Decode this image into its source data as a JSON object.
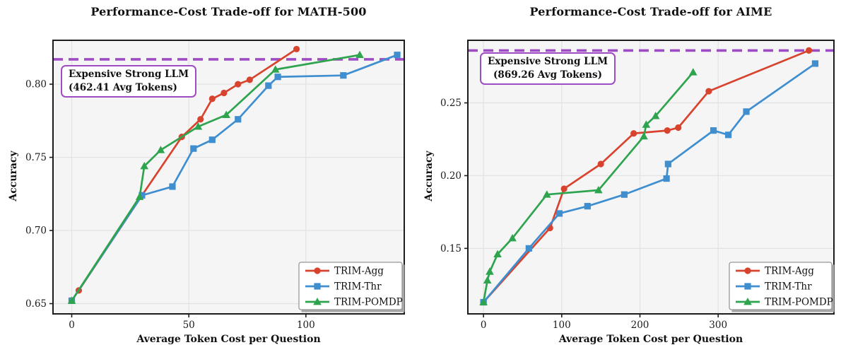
{
  "colors": {
    "trim_agg": "#d8432e",
    "trim_thr": "#3e8ed0",
    "trim_pomdp": "#2ea44e",
    "reference": "#9e4cc4",
    "plot_background": "#f5f5f6",
    "grid": "#e2e2e2",
    "spine": "#1c1c1c",
    "tick_text": "#1a1a1a",
    "legend_border": "#999999",
    "legend_shadow": "#a8a8a8"
  },
  "chart_data": [
    {
      "type": "line",
      "title": "Performance-Cost Trade-off for MATH-500",
      "xlabel": "Average Token Cost per Question",
      "ylabel": "Accuracy",
      "xlim": [
        -8,
        142
      ],
      "ylim": [
        0.643,
        0.83
      ],
      "grid": true,
      "legend_position": "lower right",
      "x_ticks": [
        {
          "value": 0,
          "label": "0"
        },
        {
          "value": 50,
          "label": "50"
        },
        {
          "value": 100,
          "label": "100"
        }
      ],
      "y_ticks": [
        {
          "value": 0.65,
          "label": "0.65"
        },
        {
          "value": 0.7,
          "label": "0.70"
        },
        {
          "value": 0.75,
          "label": "0.75"
        },
        {
          "value": 0.8,
          "label": "0.80"
        }
      ],
      "reference_line": {
        "y": 0.817,
        "label_line1": "Expensive Strong LLM",
        "label_line2": "(462.41 Avg Tokens)"
      },
      "series": [
        {
          "name": "TRIM-Agg",
          "marker": "circle",
          "color_key": "trim_agg",
          "points": [
            [
              3,
              0.659
            ],
            [
              30,
              0.724
            ],
            [
              47,
              0.764
            ],
            [
              55,
              0.776
            ],
            [
              60,
              0.79
            ],
            [
              65,
              0.794
            ],
            [
              71,
              0.8
            ],
            [
              76,
              0.803
            ],
            [
              96,
              0.824
            ]
          ]
        },
        {
          "name": "TRIM-Thr",
          "marker": "square",
          "color_key": "trim_thr",
          "points": [
            [
              0,
              0.652
            ],
            [
              30,
              0.724
            ],
            [
              43,
              0.73
            ],
            [
              52,
              0.756
            ],
            [
              60,
              0.762
            ],
            [
              71,
              0.776
            ],
            [
              84,
              0.799
            ],
            [
              88,
              0.805
            ],
            [
              116,
              0.806
            ],
            [
              139,
              0.82
            ]
          ]
        },
        {
          "name": "TRIM-POMDP",
          "marker": "triangle",
          "color_key": "trim_pomdp",
          "points": [
            [
              0,
              0.652
            ],
            [
              29,
              0.723
            ],
            [
              31,
              0.744
            ],
            [
              38,
              0.755
            ],
            [
              54,
              0.771
            ],
            [
              66,
              0.779
            ],
            [
              87,
              0.81
            ],
            [
              123,
              0.82
            ]
          ]
        }
      ]
    },
    {
      "type": "line",
      "title": "Performance-Cost Trade-off for AIME",
      "xlabel": "Average Token Cost per Question",
      "ylabel": "Accuracy",
      "xlim": [
        -20,
        448
      ],
      "ylim": [
        0.105,
        0.293
      ],
      "grid": true,
      "legend_position": "lower right",
      "x_ticks": [
        {
          "value": 0,
          "label": "0"
        },
        {
          "value": 100,
          "label": "100"
        },
        {
          "value": 200,
          "label": "200"
        },
        {
          "value": 300,
          "label": "300"
        }
      ],
      "y_ticks": [
        {
          "value": 0.15,
          "label": "0.15"
        },
        {
          "value": 0.2,
          "label": "0.20"
        },
        {
          "value": 0.25,
          "label": "0.25"
        }
      ],
      "reference_line": {
        "y": 0.286,
        "label_line1": "Expensive Strong LLM",
        "label_line2": "(869.26 Avg Tokens)"
      },
      "series": [
        {
          "name": "TRIM-Agg",
          "marker": "circle",
          "color_key": "trim_agg",
          "points": [
            [
              0,
              0.113
            ],
            [
              85,
              0.164
            ],
            [
              103,
              0.191
            ],
            [
              150,
              0.208
            ],
            [
              192,
              0.229
            ],
            [
              235,
              0.231
            ],
            [
              249,
              0.233
            ],
            [
              288,
              0.258
            ],
            [
              416,
              0.286
            ]
          ]
        },
        {
          "name": "TRIM-Thr",
          "marker": "square",
          "color_key": "trim_thr",
          "points": [
            [
              0,
              0.113
            ],
            [
              58,
              0.15
            ],
            [
              97,
              0.174
            ],
            [
              133,
              0.179
            ],
            [
              180,
              0.187
            ],
            [
              234,
              0.198
            ],
            [
              236,
              0.208
            ],
            [
              294,
              0.231
            ],
            [
              313,
              0.228
            ],
            [
              336,
              0.244
            ],
            [
              424,
              0.277
            ]
          ]
        },
        {
          "name": "TRIM-POMDP",
          "marker": "triangle",
          "color_key": "trim_pomdp",
          "points": [
            [
              0,
              0.113
            ],
            [
              5,
              0.128
            ],
            [
              8,
              0.134
            ],
            [
              18,
              0.146
            ],
            [
              37,
              0.157
            ],
            [
              81,
              0.187
            ],
            [
              147,
              0.19
            ],
            [
              205,
              0.227
            ],
            [
              208,
              0.235
            ],
            [
              220,
              0.241
            ],
            [
              268,
              0.271
            ]
          ]
        }
      ]
    }
  ]
}
